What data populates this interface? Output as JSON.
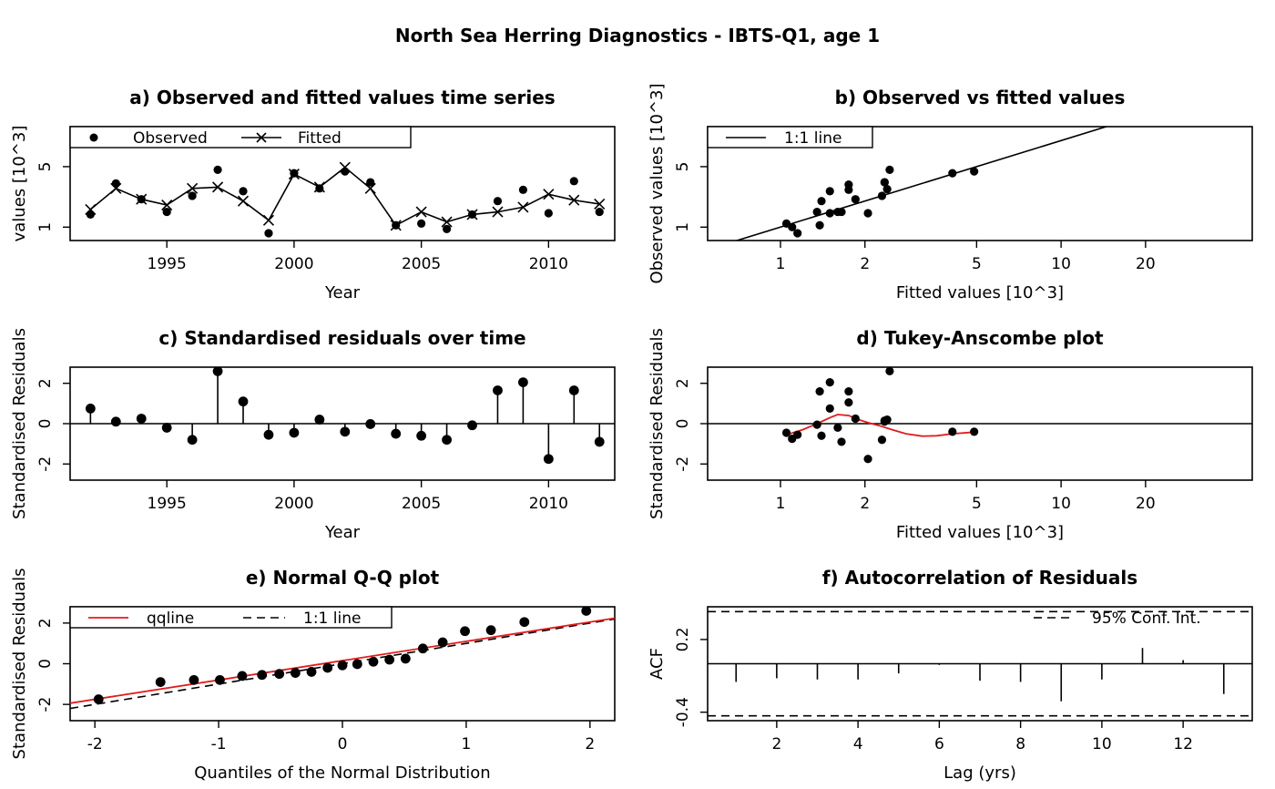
{
  "main_title": "North Sea Herring Diagnostics - IBTS-Q1, age 1",
  "colors": {
    "fit": "#e41a1c",
    "ink": "#000000"
  },
  "chart_data": [
    {
      "id": "a",
      "type": "scatter",
      "title": "a) Observed and fitted values time series",
      "xlabel": "Year",
      "ylabel": "values [10^3]",
      "log_y": true,
      "xlim": [
        1991.2,
        2012.6
      ],
      "ylim": [
        0.7,
        14.5
      ],
      "xticks": [
        1995,
        2000,
        2005,
        2010
      ],
      "yticks": [
        1,
        5
      ],
      "legend": {
        "placement": "top-left",
        "observed": "Observed",
        "fitted": "Fitted"
      },
      "years": [
        1992,
        1993,
        1994,
        1995,
        1996,
        1997,
        1998,
        1999,
        2000,
        2001,
        2002,
        2003,
        2004,
        2005,
        2006,
        2007,
        2008,
        2009,
        2010,
        2011,
        2012
      ],
      "observed": [
        1.4,
        3.2,
        2.1,
        1.5,
        2.3,
        4.6,
        2.6,
        0.85,
        4.2,
        2.8,
        4.4,
        3.3,
        1.05,
        1.1,
        0.95,
        1.4,
        2.0,
        2.7,
        1.45,
        3.4,
        1.5
      ],
      "fitted": [
        1.6,
        2.8,
        2.1,
        1.8,
        2.8,
        2.9,
        2.0,
        1.2,
        4.1,
        2.9,
        4.9,
        2.8,
        1.05,
        1.5,
        1.15,
        1.4,
        1.5,
        1.7,
        2.4,
        2.05,
        1.85
      ]
    },
    {
      "id": "b",
      "type": "scatter",
      "title": "b) Observed vs fitted values",
      "xlabel": "Fitted values [10^3]",
      "ylabel": "Observed values [10^3]",
      "log_x": true,
      "log_y": true,
      "xlim": [
        0.55,
        48
      ],
      "ylim": [
        0.7,
        14.5
      ],
      "xticks": [
        1,
        2,
        5,
        10,
        20
      ],
      "yticks": [
        1,
        5
      ],
      "legend": {
        "placement": "top-left",
        "line": "1:1 line"
      },
      "fitted": [
        1.05,
        1.1,
        1.15,
        1.35,
        1.38,
        1.4,
        1.5,
        1.5,
        1.6,
        1.65,
        1.75,
        1.75,
        1.85,
        2.05,
        2.3,
        2.35,
        2.35,
        2.4,
        2.45,
        4.1,
        4.9
      ],
      "observed": [
        1.1,
        1.0,
        0.85,
        1.5,
        1.05,
        2.0,
        1.45,
        2.6,
        1.5,
        1.5,
        3.1,
        2.7,
        2.1,
        1.45,
        2.3,
        3.3,
        3.3,
        2.75,
        4.6,
        4.2,
        4.4
      ]
    },
    {
      "id": "c",
      "type": "scatter",
      "title": "c) Standardised residuals over time",
      "xlabel": "Year",
      "ylabel": "Standardised Residuals",
      "xlim": [
        1991.2,
        2012.6
      ],
      "ylim": [
        -2.8,
        2.8
      ],
      "xticks": [
        1995,
        2000,
        2005,
        2010
      ],
      "yticks": [
        -2,
        0,
        2
      ],
      "years": [
        1992,
        1993,
        1994,
        1995,
        1996,
        1997,
        1998,
        1999,
        2000,
        2001,
        2002,
        2003,
        2004,
        2005,
        2006,
        2007,
        2008,
        2009,
        2010,
        2011,
        2012
      ],
      "residuals": [
        0.75,
        0.1,
        0.25,
        -0.2,
        -0.8,
        2.6,
        1.1,
        -0.55,
        -0.45,
        0.2,
        -0.4,
        -0.02,
        -0.5,
        -0.6,
        -0.8,
        -0.08,
        1.65,
        2.05,
        -1.75,
        1.65,
        -0.9
      ]
    },
    {
      "id": "d",
      "type": "scatter",
      "title": "d) Tukey-Anscombe plot",
      "xlabel": "Fitted values [10^3]",
      "ylabel": "Standardised Residuals",
      "log_x": true,
      "xlim": [
        0.55,
        48
      ],
      "ylim": [
        -2.8,
        2.8
      ],
      "xticks": [
        1,
        2,
        5,
        10,
        20
      ],
      "yticks": [
        -2,
        0,
        2
      ],
      "fitted": [
        1.05,
        1.1,
        1.15,
        1.35,
        1.38,
        1.4,
        1.5,
        1.5,
        1.6,
        1.65,
        1.75,
        1.75,
        1.85,
        2.05,
        2.3,
        2.35,
        2.35,
        2.4,
        2.45,
        4.1,
        4.9
      ],
      "residuals": [
        -0.45,
        -0.75,
        -0.55,
        -0.05,
        1.6,
        -0.6,
        0.75,
        2.05,
        -0.2,
        -0.9,
        1.05,
        1.6,
        0.25,
        -1.75,
        -0.8,
        0.15,
        0.1,
        0.2,
        2.6,
        -0.4,
        -0.4
      ],
      "smoother": {
        "x": [
          1.05,
          1.2,
          1.35,
          1.5,
          1.6,
          1.75,
          1.9,
          2.05,
          2.25,
          2.5,
          2.8,
          3.2,
          3.6,
          4.1,
          4.9
        ],
        "y": [
          -0.55,
          -0.3,
          0.0,
          0.3,
          0.45,
          0.4,
          0.2,
          0.05,
          -0.1,
          -0.3,
          -0.5,
          -0.62,
          -0.6,
          -0.5,
          -0.42
        ]
      }
    },
    {
      "id": "e",
      "type": "scatter",
      "title": "e) Normal Q-Q plot",
      "xlabel": "Quantiles of the Normal Distribution",
      "ylabel": "Standardised Residuals",
      "xlim": [
        -2.2,
        2.2
      ],
      "ylim": [
        -2.8,
        2.8
      ],
      "xticks": [
        -2,
        -1,
        0,
        1,
        2
      ],
      "yticks": [
        -2,
        0,
        2
      ],
      "legend": {
        "placement": "top-left",
        "qqline": "qqline",
        "identity": "1:1 line"
      },
      "theoretical": [
        -1.97,
        -1.47,
        -1.2,
        -0.99,
        -0.81,
        -0.65,
        -0.51,
        -0.38,
        -0.25,
        -0.12,
        0.0,
        0.12,
        0.25,
        0.38,
        0.51,
        0.65,
        0.81,
        0.99,
        1.2,
        1.47,
        1.97
      ],
      "sample": [
        -1.75,
        -0.9,
        -0.8,
        -0.8,
        -0.6,
        -0.55,
        -0.5,
        -0.45,
        -0.4,
        -0.2,
        -0.08,
        -0.02,
        0.1,
        0.2,
        0.25,
        0.75,
        1.05,
        1.6,
        1.65,
        2.05,
        2.6
      ],
      "qqline": {
        "intercept": 0.15,
        "slope": 0.95
      }
    },
    {
      "id": "f",
      "type": "bar",
      "title": "f) Autocorrelation of Residuals",
      "xlabel": "Lag (yrs)",
      "ylabel": "ACF",
      "xlim": [
        0.3,
        13.7
      ],
      "ylim": [
        -0.47,
        0.47
      ],
      "xticks": [
        2,
        4,
        6,
        8,
        10,
        12
      ],
      "yticks": [
        -0.4,
        0.2
      ],
      "legend": {
        "placement": "top-right",
        "ci": "95% Conf. Int."
      },
      "conf_int": 0.43,
      "lags": [
        1,
        2,
        3,
        4,
        5,
        6,
        7,
        8,
        9,
        10,
        11,
        12,
        13
      ],
      "acf": [
        -0.15,
        -0.12,
        -0.13,
        -0.13,
        -0.08,
        -0.01,
        -0.14,
        -0.15,
        -0.31,
        -0.13,
        0.13,
        0.03,
        -0.25
      ]
    }
  ]
}
